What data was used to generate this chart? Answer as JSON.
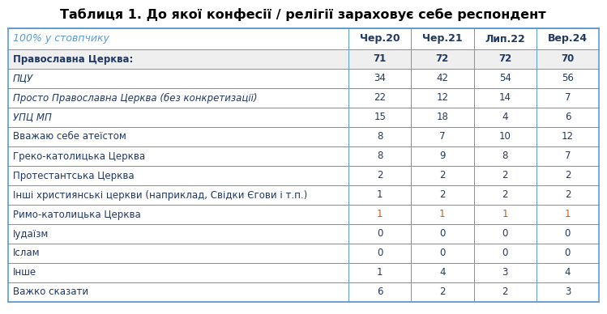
{
  "title": "Таблиця 1. До якої конфесії / релігії зараховує себе респондент",
  "header_row": [
    "100% у стовпчику",
    "Чер.20",
    "Чер.21",
    "Лип.22",
    "Вер.24"
  ],
  "rows": [
    {
      "label": "Православна Церква:",
      "values": [
        "71",
        "72",
        "72",
        "70"
      ],
      "bold": true,
      "italic": false,
      "orange_vals": []
    },
    {
      "label": "ПЦУ",
      "values": [
        "34",
        "42",
        "54",
        "56"
      ],
      "bold": false,
      "italic": true,
      "orange_vals": []
    },
    {
      "label": "Просто Православна Церква (без конкретизації)",
      "values": [
        "22",
        "12",
        "14",
        "7"
      ],
      "bold": false,
      "italic": true,
      "orange_vals": []
    },
    {
      "label": "УПЦ МП",
      "values": [
        "15",
        "18",
        "4",
        "6"
      ],
      "bold": false,
      "italic": true,
      "orange_vals": []
    },
    {
      "label": "Вважаю себе атеїстом",
      "values": [
        "8",
        "7",
        "10",
        "12"
      ],
      "bold": false,
      "italic": false,
      "orange_vals": []
    },
    {
      "label": "Греко-католицька Церква",
      "values": [
        "8",
        "9",
        "8",
        "7"
      ],
      "bold": false,
      "italic": false,
      "orange_vals": []
    },
    {
      "label": "Протестантська Церква",
      "values": [
        "2",
        "2",
        "2",
        "2"
      ],
      "bold": false,
      "italic": false,
      "orange_vals": []
    },
    {
      "label": "Інші християнські церкви (наприклад, Свідки Єгови і т.п.)",
      "values": [
        "1",
        "2",
        "2",
        "2"
      ],
      "bold": false,
      "italic": false,
      "orange_vals": []
    },
    {
      "label": "Римо-католицька Церква",
      "values": [
        "1",
        "1",
        "1",
        "1"
      ],
      "bold": false,
      "italic": false,
      "orange_vals": [
        0,
        1,
        2,
        3
      ]
    },
    {
      "label": "Іудаїзм",
      "values": [
        "0",
        "0",
        "0",
        "0"
      ],
      "bold": false,
      "italic": false,
      "orange_vals": []
    },
    {
      "label": "Іслам",
      "values": [
        "0",
        "0",
        "0",
        "0"
      ],
      "bold": false,
      "italic": false,
      "orange_vals": []
    },
    {
      "label": "Інше",
      "values": [
        "1",
        "4",
        "3",
        "4"
      ],
      "bold": false,
      "italic": false,
      "orange_vals": []
    },
    {
      "label": "Важко сказати",
      "values": [
        "6",
        "2",
        "2",
        "3"
      ],
      "bold": false,
      "italic": false,
      "orange_vals": []
    }
  ],
  "title_fontsize": 11.5,
  "header_fontsize": 9,
  "body_fontsize": 8.5,
  "bg_color": "#ffffff",
  "bold_row_bg": "#efefef",
  "border_color": "#5b9bd5",
  "title_color": "#000000",
  "header_label_color": "#5b9bd5",
  "header_value_color": "#1f3864",
  "normal_label_color": "#1f3864",
  "normal_value_color": "#1f3864",
  "orange_color": "#c55a11"
}
